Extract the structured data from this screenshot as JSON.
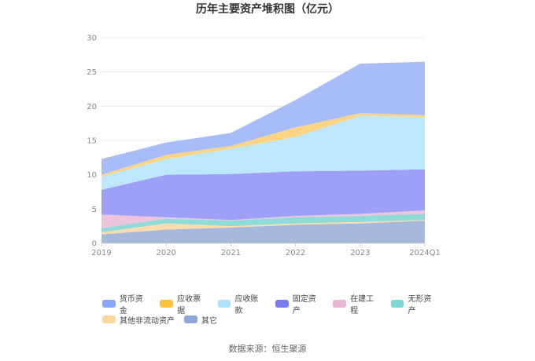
{
  "chart_data": {
    "type": "area",
    "stacked": true,
    "title": "历年主要资产堆积图（亿元）",
    "categories": [
      "2019",
      "2020",
      "2021",
      "2022",
      "2023",
      "2024Q1"
    ],
    "ylim": [
      0,
      30
    ],
    "yticks": [
      0,
      5,
      10,
      15,
      20,
      25,
      30
    ],
    "grid": true,
    "legend_position": "bottom",
    "series": [
      {
        "name": "其它",
        "color": "#a7b8dd",
        "values": [
          1.3,
          2.0,
          2.3,
          2.7,
          2.9,
          3.3
        ]
      },
      {
        "name": "其他非流动资产",
        "color": "#fbdcaa",
        "values": [
          0.3,
          0.9,
          0.2,
          0.2,
          0.2,
          0.1
        ]
      },
      {
        "name": "无形资产",
        "color": "#8fdbd7",
        "values": [
          0.6,
          0.7,
          0.8,
          0.9,
          0.9,
          0.9
        ]
      },
      {
        "name": "在建工程",
        "color": "#ecc4dc",
        "values": [
          2.0,
          0.2,
          0.1,
          0.2,
          0.3,
          0.5
        ]
      },
      {
        "name": "固定资产",
        "color": "#9e9ff7",
        "values": [
          3.6,
          6.2,
          6.7,
          6.5,
          6.3,
          6.0
        ]
      },
      {
        "name": "应收账款",
        "color": "#bde8fb",
        "values": [
          1.9,
          2.3,
          3.7,
          5.0,
          8.0,
          7.6
        ]
      },
      {
        "name": "应收票据",
        "color": "#fbd584",
        "values": [
          0.3,
          0.6,
          0.4,
          1.4,
          0.4,
          0.3
        ]
      },
      {
        "name": "货币资金",
        "color": "#a8bcf9",
        "values": [
          2.3,
          1.8,
          1.9,
          4.0,
          7.2,
          7.8
        ]
      }
    ]
  },
  "legend": [
    {
      "name": "货币资金",
      "color": "#8aa6f7"
    },
    {
      "name": "应收票据",
      "color": "#fbc43c"
    },
    {
      "name": "应收账款",
      "color": "#a9e2fa"
    },
    {
      "name": "固定资产",
      "color": "#7a7bf0"
    },
    {
      "name": "在建工程",
      "color": "#e8b6d4"
    },
    {
      "name": "无形资产",
      "color": "#7fd6d2"
    },
    {
      "name": "其他非流动资产",
      "color": "#fbd99a"
    },
    {
      "name": "其它",
      "color": "#8fa8dc"
    }
  ],
  "source": "数据来源：恒生聚源"
}
